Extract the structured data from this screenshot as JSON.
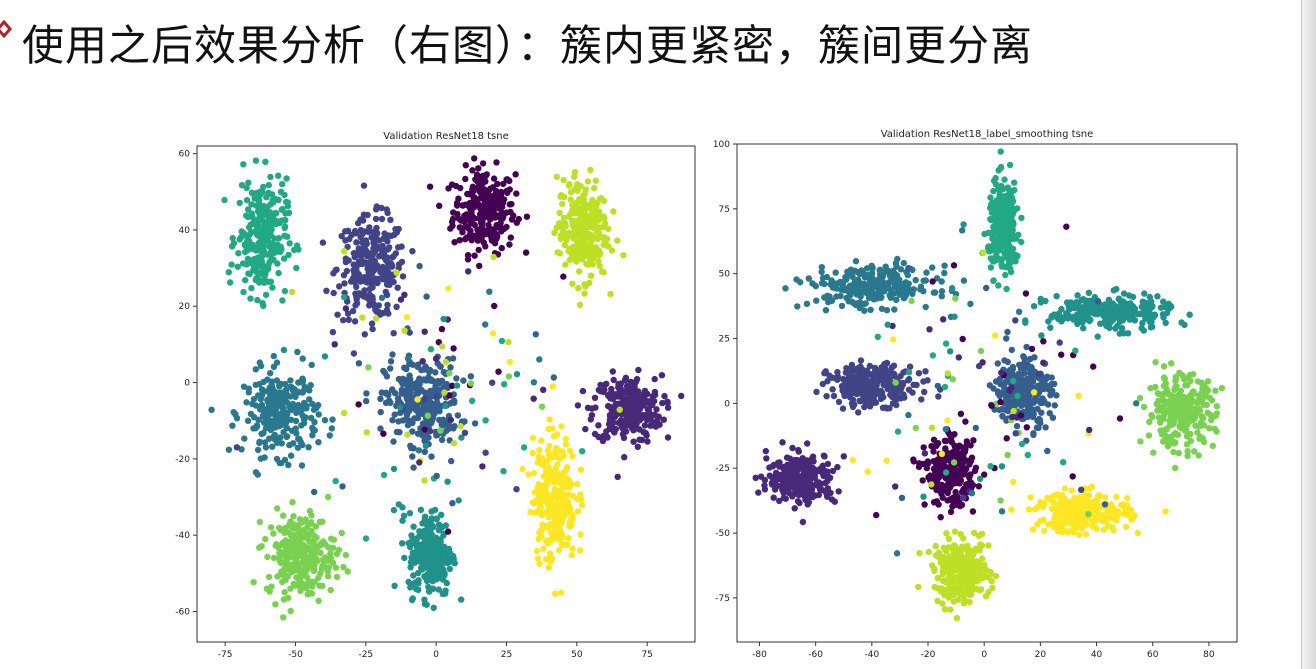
{
  "slide": {
    "title": "使用之后效果分析（右图）：簇内更紧密，簇间更分离",
    "bullet_icon": "red-diamond-bullet-icon",
    "colors": {
      "title": "#111111",
      "bullet": "#b22222"
    }
  },
  "chart_data": [
    {
      "type": "scatter",
      "title": "Validation ResNet18 tsne",
      "xlabel": "",
      "ylabel": "",
      "xlim": [
        -85,
        92
      ],
      "ylim": [
        -68,
        62
      ],
      "xticks": [
        -75,
        -50,
        -25,
        0,
        25,
        50,
        75
      ],
      "yticks": [
        -60,
        -40,
        -20,
        0,
        20,
        40,
        60
      ],
      "grid": false,
      "colormap": "viridis",
      "clusters": [
        {
          "center": [
            17,
            45
          ],
          "spread": [
            10,
            10
          ],
          "color": "#440154"
        },
        {
          "center": [
            -23,
            30
          ],
          "spread": [
            11,
            12
          ],
          "color": "#414487"
        },
        {
          "center": [
            68,
            -7
          ],
          "spread": [
            11,
            8
          ],
          "color": "#482878"
        },
        {
          "center": [
            -5,
            -5
          ],
          "spread": [
            12,
            10
          ],
          "color": "#355f8d"
        },
        {
          "center": [
            -55,
            -8
          ],
          "spread": [
            12,
            10
          ],
          "color": "#2a788e"
        },
        {
          "center": [
            -62,
            38
          ],
          "spread": [
            8,
            14
          ],
          "color": "#22a884"
        },
        {
          "center": [
            -2,
            -45
          ],
          "spread": [
            7,
            10
          ],
          "color": "#21918c"
        },
        {
          "center": [
            -48,
            -45
          ],
          "spread": [
            11,
            10
          ],
          "color": "#7ad151"
        },
        {
          "center": [
            52,
            40
          ],
          "spread": [
            8,
            12
          ],
          "color": "#bddf26"
        },
        {
          "center": [
            42,
            -30
          ],
          "spread": [
            7,
            15
          ],
          "color": "#fde725"
        }
      ]
    },
    {
      "type": "scatter",
      "title": "Validation ResNet18_label_smoothing tsne",
      "xlabel": "",
      "ylabel": "",
      "xlim": [
        -88,
        90
      ],
      "ylim": [
        -92,
        100
      ],
      "xticks": [
        -80,
        -60,
        -40,
        -20,
        0,
        20,
        40,
        60,
        80
      ],
      "yticks": [
        -75,
        -50,
        -25,
        0,
        25,
        50,
        75,
        100
      ],
      "grid": false,
      "colormap": "viridis",
      "clusters": [
        {
          "center": [
            7,
            68
          ],
          "spread": [
            5,
            16
          ],
          "color": "#22a884"
        },
        {
          "center": [
            -40,
            45
          ],
          "spread": [
            20,
            7
          ],
          "color": "#2a788e"
        },
        {
          "center": [
            45,
            35
          ],
          "spread": [
            20,
            6
          ],
          "color": "#21918c"
        },
        {
          "center": [
            -40,
            7
          ],
          "spread": [
            14,
            7
          ],
          "color": "#414487"
        },
        {
          "center": [
            14,
            5
          ],
          "spread": [
            9,
            12
          ],
          "color": "#355f8d"
        },
        {
          "center": [
            70,
            -3
          ],
          "spread": [
            11,
            12
          ],
          "color": "#7ad151"
        },
        {
          "center": [
            -65,
            -29
          ],
          "spread": [
            11,
            9
          ],
          "color": "#482878"
        },
        {
          "center": [
            -12,
            -27
          ],
          "spread": [
            8,
            11
          ],
          "color": "#440154"
        },
        {
          "center": [
            35,
            -42
          ],
          "spread": [
            15,
            7
          ],
          "color": "#fde725"
        },
        {
          "center": [
            -8,
            -65
          ],
          "spread": [
            9,
            11
          ],
          "color": "#bddf26"
        }
      ]
    }
  ]
}
